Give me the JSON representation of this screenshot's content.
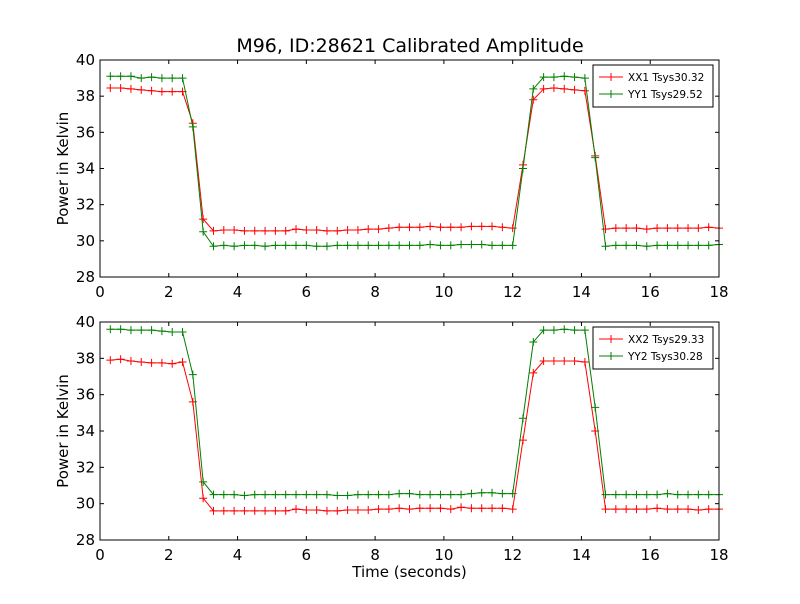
{
  "figure": {
    "title": "M96, ID:28621 Calibrated Amplitude"
  },
  "chart_data": [
    {
      "type": "line",
      "title": "M96, ID:28621 Calibrated Amplitude",
      "xlabel": "",
      "ylabel": "Power in Kelvin",
      "xlim": [
        0,
        18
      ],
      "ylim": [
        28,
        40
      ],
      "xticks": [
        "0",
        "2",
        "4",
        "6",
        "8",
        "10",
        "12",
        "14",
        "16",
        "18"
      ],
      "yticks": [
        "28",
        "30",
        "32",
        "34",
        "36",
        "38",
        "40"
      ],
      "grid": false,
      "legend_position": "top-right",
      "series": [
        {
          "name": "XX1 Tsys30.32",
          "color": "#ff0000",
          "marker": "plus",
          "x": [
            0.3,
            0.6,
            0.9,
            1.2,
            1.5,
            1.8,
            2.1,
            2.4,
            2.7,
            3.0,
            3.3,
            3.6,
            3.9,
            4.2,
            4.5,
            4.8,
            5.1,
            5.4,
            5.7,
            6.0,
            6.3,
            6.6,
            6.9,
            7.2,
            7.5,
            7.8,
            8.1,
            8.4,
            8.7,
            9.0,
            9.3,
            9.6,
            9.9,
            10.2,
            10.5,
            10.8,
            11.1,
            11.4,
            11.7,
            12.0,
            12.3,
            12.6,
            12.9,
            13.2,
            13.5,
            13.8,
            14.1,
            14.4,
            14.7,
            15.0,
            15.3,
            15.6,
            15.9,
            16.2,
            16.5,
            16.8,
            17.1,
            17.4,
            17.7,
            18.0
          ],
          "y": [
            38.45,
            38.45,
            38.4,
            38.35,
            38.3,
            38.25,
            38.25,
            38.25,
            36.5,
            31.2,
            30.55,
            30.6,
            30.6,
            30.55,
            30.55,
            30.55,
            30.55,
            30.55,
            30.65,
            30.6,
            30.6,
            30.55,
            30.55,
            30.6,
            30.6,
            30.65,
            30.65,
            30.7,
            30.75,
            30.75,
            30.75,
            30.8,
            30.75,
            30.75,
            30.75,
            30.8,
            30.8,
            30.8,
            30.75,
            30.7,
            34.2,
            37.8,
            38.4,
            38.45,
            38.4,
            38.35,
            38.3,
            34.7,
            30.65,
            30.7,
            30.7,
            30.7,
            30.65,
            30.7,
            30.7,
            30.7,
            30.7,
            30.7,
            30.75,
            30.7
          ]
        },
        {
          "name": "YY1 Tsys29.52",
          "color": "#008000",
          "marker": "plus",
          "x": [
            0.3,
            0.6,
            0.9,
            1.2,
            1.5,
            1.8,
            2.1,
            2.4,
            2.7,
            3.0,
            3.3,
            3.6,
            3.9,
            4.2,
            4.5,
            4.8,
            5.1,
            5.4,
            5.7,
            6.0,
            6.3,
            6.6,
            6.9,
            7.2,
            7.5,
            7.8,
            8.1,
            8.4,
            8.7,
            9.0,
            9.3,
            9.6,
            9.9,
            10.2,
            10.5,
            10.8,
            11.1,
            11.4,
            11.7,
            12.0,
            12.3,
            12.6,
            12.9,
            13.2,
            13.5,
            13.8,
            14.1,
            14.4,
            14.7,
            15.0,
            15.3,
            15.6,
            15.9,
            16.2,
            16.5,
            16.8,
            17.1,
            17.4,
            17.7,
            18.0
          ],
          "y": [
            39.1,
            39.1,
            39.1,
            39.0,
            39.05,
            39.0,
            39.0,
            39.0,
            36.3,
            30.5,
            29.7,
            29.75,
            29.7,
            29.75,
            29.75,
            29.7,
            29.75,
            29.75,
            29.75,
            29.75,
            29.7,
            29.7,
            29.75,
            29.75,
            29.75,
            29.75,
            29.75,
            29.75,
            29.75,
            29.75,
            29.75,
            29.8,
            29.75,
            29.75,
            29.8,
            29.8,
            29.8,
            29.75,
            29.75,
            29.75,
            34.0,
            38.4,
            39.05,
            39.05,
            39.1,
            39.05,
            39.0,
            34.6,
            29.7,
            29.75,
            29.75,
            29.75,
            29.7,
            29.75,
            29.75,
            29.75,
            29.75,
            29.75,
            29.75,
            29.8
          ]
        }
      ]
    },
    {
      "type": "line",
      "title": "",
      "xlabel": "Time (seconds)",
      "ylabel": "Power in Kelvin",
      "xlim": [
        0,
        18
      ],
      "ylim": [
        28,
        40
      ],
      "xticks": [
        "0",
        "2",
        "4",
        "6",
        "8",
        "10",
        "12",
        "14",
        "16",
        "18"
      ],
      "yticks": [
        "28",
        "30",
        "32",
        "34",
        "36",
        "38",
        "40"
      ],
      "grid": false,
      "legend_position": "top-right",
      "series": [
        {
          "name": "XX2 Tsys29.33",
          "color": "#ff0000",
          "marker": "plus",
          "x": [
            0.3,
            0.6,
            0.9,
            1.2,
            1.5,
            1.8,
            2.1,
            2.4,
            2.7,
            3.0,
            3.3,
            3.6,
            3.9,
            4.2,
            4.5,
            4.8,
            5.1,
            5.4,
            5.7,
            6.0,
            6.3,
            6.6,
            6.9,
            7.2,
            7.5,
            7.8,
            8.1,
            8.4,
            8.7,
            9.0,
            9.3,
            9.6,
            9.9,
            10.2,
            10.5,
            10.8,
            11.1,
            11.4,
            11.7,
            12.0,
            12.3,
            12.6,
            12.9,
            13.2,
            13.5,
            13.8,
            14.1,
            14.4,
            14.7,
            15.0,
            15.3,
            15.6,
            15.9,
            16.2,
            16.5,
            16.8,
            17.1,
            17.4,
            17.7,
            18.0
          ],
          "y": [
            37.9,
            37.95,
            37.85,
            37.8,
            37.75,
            37.75,
            37.7,
            37.8,
            35.6,
            30.3,
            29.6,
            29.6,
            29.6,
            29.6,
            29.6,
            29.6,
            29.6,
            29.6,
            29.7,
            29.65,
            29.65,
            29.6,
            29.6,
            29.65,
            29.65,
            29.65,
            29.7,
            29.7,
            29.75,
            29.7,
            29.75,
            29.75,
            29.75,
            29.7,
            29.8,
            29.75,
            29.75,
            29.75,
            29.75,
            29.7,
            33.5,
            37.2,
            37.85,
            37.85,
            37.85,
            37.85,
            37.8,
            34.0,
            29.7,
            29.7,
            29.7,
            29.7,
            29.7,
            29.75,
            29.7,
            29.7,
            29.7,
            29.65,
            29.7,
            29.7
          ]
        },
        {
          "name": "YY2 Tsys30.28",
          "color": "#008000",
          "marker": "plus",
          "x": [
            0.3,
            0.6,
            0.9,
            1.2,
            1.5,
            1.8,
            2.1,
            2.4,
            2.7,
            3.0,
            3.3,
            3.6,
            3.9,
            4.2,
            4.5,
            4.8,
            5.1,
            5.4,
            5.7,
            6.0,
            6.3,
            6.6,
            6.9,
            7.2,
            7.5,
            7.8,
            8.1,
            8.4,
            8.7,
            9.0,
            9.3,
            9.6,
            9.9,
            10.2,
            10.5,
            10.8,
            11.1,
            11.4,
            11.7,
            12.0,
            12.3,
            12.6,
            12.9,
            13.2,
            13.5,
            13.8,
            14.1,
            14.4,
            14.7,
            15.0,
            15.3,
            15.6,
            15.9,
            16.2,
            16.5,
            16.8,
            17.1,
            17.4,
            17.7,
            18.0
          ],
          "y": [
            39.6,
            39.6,
            39.55,
            39.55,
            39.55,
            39.5,
            39.45,
            39.45,
            37.1,
            31.2,
            30.5,
            30.5,
            30.5,
            30.45,
            30.5,
            30.5,
            30.5,
            30.5,
            30.5,
            30.5,
            30.5,
            30.5,
            30.45,
            30.45,
            30.5,
            30.5,
            30.5,
            30.5,
            30.55,
            30.55,
            30.5,
            30.5,
            30.5,
            30.5,
            30.5,
            30.55,
            30.6,
            30.6,
            30.55,
            30.55,
            34.7,
            38.9,
            39.55,
            39.55,
            39.6,
            39.55,
            39.55,
            35.3,
            30.5,
            30.5,
            30.5,
            30.5,
            30.5,
            30.5,
            30.55,
            30.5,
            30.5,
            30.5,
            30.5,
            30.5
          ]
        }
      ]
    }
  ]
}
